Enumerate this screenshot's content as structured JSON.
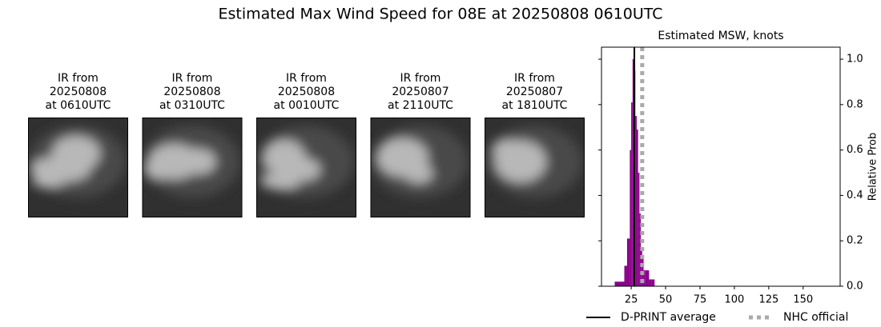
{
  "title": "Estimated Max Wind Speed for 08E at 20250808 0610UTC",
  "panels": [
    {
      "lines": [
        "IR from",
        "20250808",
        "at 0610UTC"
      ]
    },
    {
      "lines": [
        "IR from",
        "20250808",
        "at 0310UTC"
      ]
    },
    {
      "lines": [
        "IR from",
        "20250808",
        "at 0010UTC"
      ]
    },
    {
      "lines": [
        "IR from",
        "20250807",
        "at 2110UTC"
      ]
    },
    {
      "lines": [
        "IR from",
        "20250807",
        "at 1810UTC"
      ]
    }
  ],
  "chart_data": {
    "type": "histogram",
    "title": "Estimated MSW, knots",
    "ylabel": "Relative Prob",
    "bins": [
      13,
      20,
      22,
      24,
      25,
      26,
      27,
      28,
      29,
      30,
      31,
      32,
      33,
      34,
      35,
      38,
      40,
      42
    ],
    "values": [
      0.02,
      0.09,
      0.21,
      0.6,
      0.81,
      1.0,
      0.95,
      0.75,
      0.69,
      0.5,
      0.32,
      0.17,
      0.12,
      0.07,
      0.07,
      0.03,
      0.03
    ],
    "color": "#8b008b",
    "xlim": [
      3.4,
      176.9
    ],
    "ylim": [
      0,
      1.053
    ],
    "xticks": [
      25,
      50,
      75,
      100,
      125,
      150
    ],
    "yticks": [
      {
        "value": 0,
        "label": "0.0"
      },
      {
        "value": 0.2,
        "label": "0.2"
      },
      {
        "value": 0.4,
        "label": "0.4"
      },
      {
        "value": 0.6,
        "label": "0.6"
      },
      {
        "value": 0.8,
        "label": "0.8"
      },
      {
        "value": 1,
        "label": "1.0"
      }
    ],
    "lines": [
      {
        "name": "D-PRINT average",
        "x": 27.3,
        "color": "#000000",
        "style": "solid"
      },
      {
        "name": "NHC official",
        "x": 33,
        "color": "#aaaaaa",
        "style": "dotted"
      }
    ],
    "legend": "bottom"
  }
}
